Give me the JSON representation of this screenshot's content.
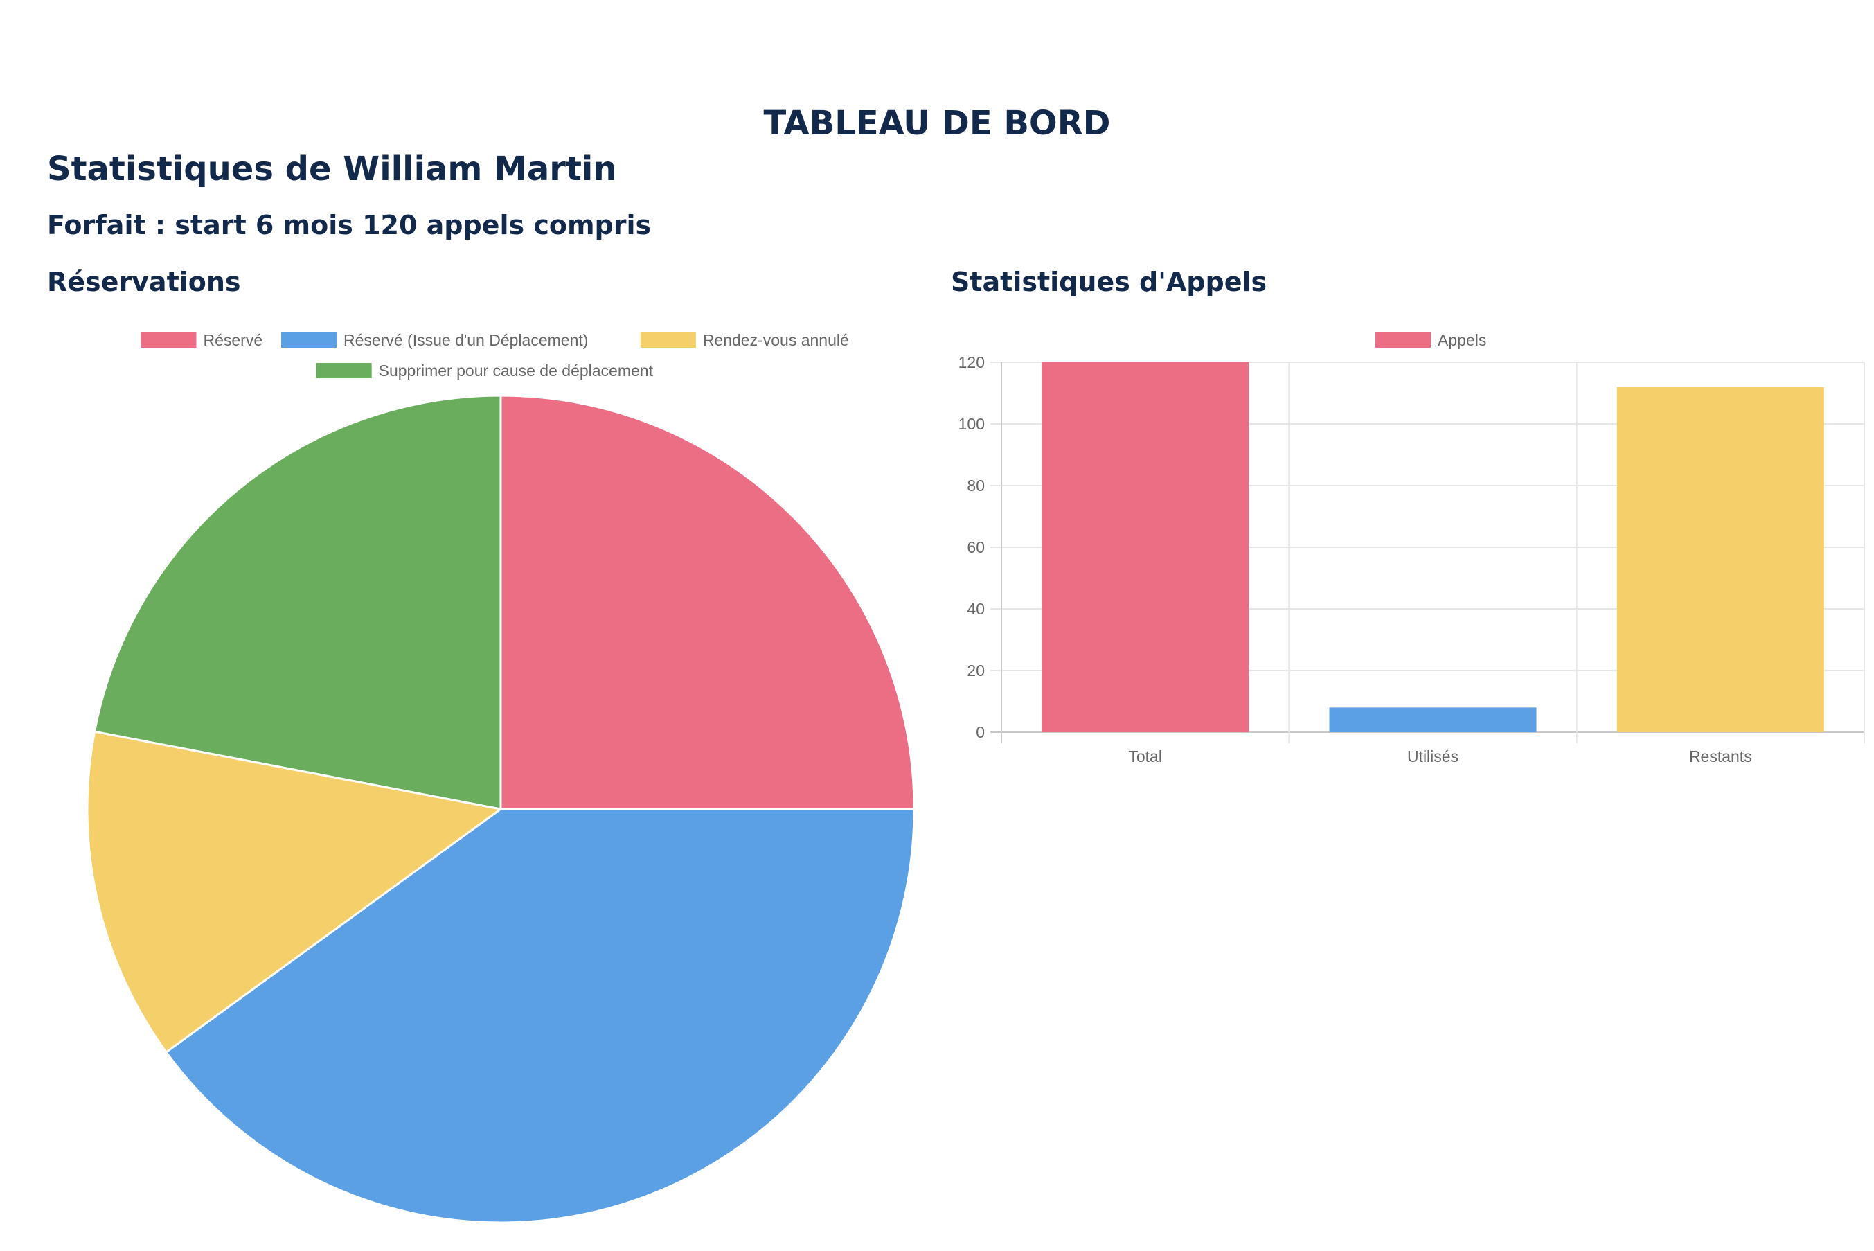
{
  "header": {
    "title": "TABLEAU DE BORD",
    "user_title": "Statistiques de William Martin",
    "plan": "Forfait : start 6 mois 120 appels compris"
  },
  "sections": {
    "reservations_title": "Réservations",
    "calls_title": "Statistiques d'Appels"
  },
  "chart_data": [
    {
      "type": "pie",
      "title": "",
      "legend_position": "top",
      "categories": [
        "Réservé",
        "Réservé (Issue d'un Déplacement)",
        "Rendez-vous annulé",
        "Supprimer pour cause de déplacement"
      ],
      "values": [
        25,
        40,
        13,
        22
      ],
      "colors": [
        "#eb6e85",
        "#5ba0e4",
        "#f5cf6a",
        "#6aad5c"
      ]
    },
    {
      "type": "bar",
      "title": "",
      "legend_position": "top",
      "categories": [
        "Total",
        "Utilisés",
        "Restants"
      ],
      "series": [
        {
          "name": "Appels",
          "values": [
            120,
            8,
            112
          ]
        }
      ],
      "colors": [
        "#eb6e85",
        "#5ba0e4",
        "#f5cf6a"
      ],
      "legend_color": "#eb6e85",
      "ylim": [
        0,
        120
      ],
      "yticks": [
        0,
        20,
        40,
        60,
        80,
        100,
        120
      ],
      "grid": true
    }
  ]
}
